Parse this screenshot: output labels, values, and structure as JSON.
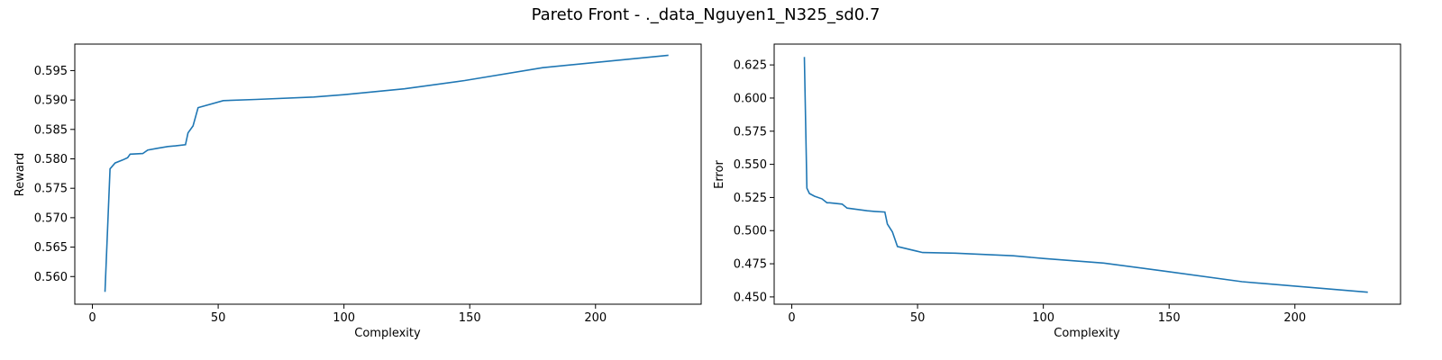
{
  "suptitle": "Pareto Front - ._data_Nguyen1_N325_sd0.7",
  "chart_data": [
    {
      "type": "line",
      "xlabel": "Complexity",
      "ylabel": "Reward",
      "xlim": [
        -7,
        242
      ],
      "ylim": [
        0.5553,
        0.5995
      ],
      "xticks": [
        0,
        50,
        100,
        150,
        200
      ],
      "xtick_labels": [
        "0",
        "50",
        "100",
        "150",
        "200"
      ],
      "yticks": [
        0.56,
        0.565,
        0.57,
        0.575,
        0.58,
        0.585,
        0.59,
        0.595
      ],
      "ytick_labels": [
        "0.560",
        "0.565",
        "0.570",
        "0.575",
        "0.580",
        "0.585",
        "0.590",
        "0.595"
      ],
      "color": "#1f77b4",
      "series": [
        {
          "x": [
            5,
            7,
            9,
            12,
            14,
            15,
            20,
            22,
            26,
            30,
            33,
            37,
            38,
            40,
            42,
            52,
            65,
            88,
            100,
            124,
            148,
            179,
            229
          ],
          "y": [
            0.5574,
            0.5783,
            0.5793,
            0.5798,
            0.5802,
            0.5808,
            0.5809,
            0.5815,
            0.5818,
            0.5821,
            0.5822,
            0.5824,
            0.5844,
            0.5856,
            0.5887,
            0.5899,
            0.5901,
            0.5905,
            0.5909,
            0.5919,
            0.5933,
            0.5955,
            0.5976
          ]
        }
      ]
    },
    {
      "type": "line",
      "xlabel": "Complexity",
      "ylabel": "Error",
      "xlim": [
        -7,
        242
      ],
      "ylim": [
        0.4445,
        0.6407
      ],
      "xticks": [
        0,
        50,
        100,
        150,
        200
      ],
      "xtick_labels": [
        "0",
        "50",
        "100",
        "150",
        "200"
      ],
      "yticks": [
        0.45,
        0.475,
        0.5,
        0.525,
        0.55,
        0.575,
        0.6,
        0.625
      ],
      "ytick_labels": [
        "0.450",
        "0.475",
        "0.500",
        "0.525",
        "0.550",
        "0.575",
        "0.600",
        "0.625"
      ],
      "color": "#1f77b4",
      "series": [
        {
          "x": [
            5,
            6,
            7,
            9,
            12,
            14,
            15,
            20,
            22,
            26,
            30,
            33,
            37,
            38,
            40,
            42,
            52,
            65,
            88,
            100,
            124,
            148,
            179,
            229
          ],
          "y": [
            0.631,
            0.532,
            0.528,
            0.526,
            0.524,
            0.521,
            0.521,
            0.52,
            0.517,
            0.516,
            0.515,
            0.5145,
            0.514,
            0.505,
            0.499,
            0.488,
            0.4835,
            0.483,
            0.481,
            0.479,
            0.4755,
            0.4695,
            0.4615,
            0.4535
          ]
        }
      ]
    }
  ]
}
